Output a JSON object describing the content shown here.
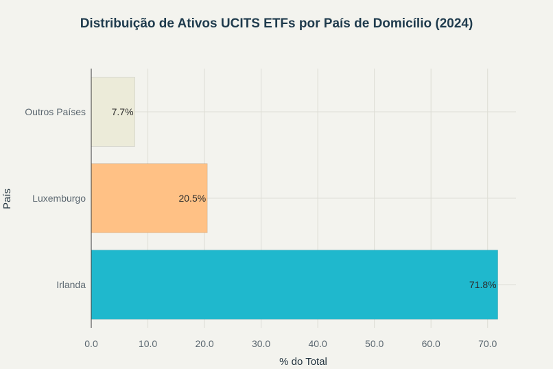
{
  "chart_data": {
    "type": "bar",
    "orientation": "horizontal",
    "title": "Distribuição de Ativos UCITS ETFs por País de Domicílio (2024)",
    "xlabel": "% do Total",
    "ylabel": "País",
    "categories": [
      "Outros Países",
      "Luxemburgo",
      "Irlanda"
    ],
    "values": [
      7.7,
      20.5,
      71.8
    ],
    "data_labels": [
      "7.7%",
      "20.5%",
      "71.8%"
    ],
    "colors": [
      "#ECEBD9",
      "#FFC185",
      "#1FB8CD"
    ],
    "xlim": [
      0,
      75
    ],
    "xticks": [
      0,
      10,
      20,
      30,
      40,
      50,
      60,
      70
    ],
    "xtick_labels": [
      "0.0",
      "10.0",
      "20.0",
      "30.0",
      "40.0",
      "50.0",
      "60.0",
      "70.0"
    ],
    "grid": true,
    "legend": "none"
  }
}
